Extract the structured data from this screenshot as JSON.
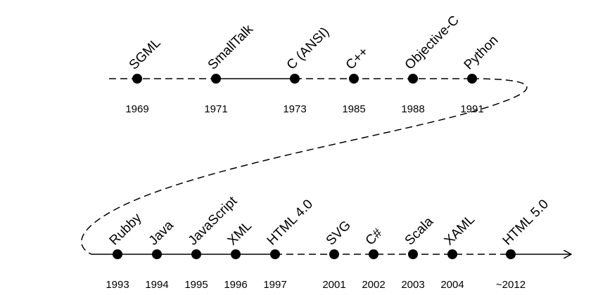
{
  "events": [
    {
      "name": "SGML",
      "year": "1969"
    },
    {
      "name": "SmallTalk",
      "year": "1971"
    },
    {
      "name": "C (ANSI)",
      "year": "1973"
    },
    {
      "name": "C++",
      "year": "1985"
    },
    {
      "name": "Objective-C",
      "year": "1988"
    },
    {
      "name": "Python",
      "year": "1991"
    },
    {
      "name": "Rubby",
      "year": "1993"
    },
    {
      "name": "Java",
      "year": "1994"
    },
    {
      "name": "JavaScript",
      "year": "1995"
    },
    {
      "name": "XML",
      "year": "1996"
    },
    {
      "name": "HTML 4.0",
      "year": "1997"
    },
    {
      "name": "SVG",
      "year": "2001"
    },
    {
      "name": "C#",
      "year": "2002"
    },
    {
      "name": "Scala",
      "year": "2003"
    },
    {
      "name": "XAML",
      "year": "2004"
    },
    {
      "name": "HTML 5.0",
      "year": "~2012"
    }
  ]
}
